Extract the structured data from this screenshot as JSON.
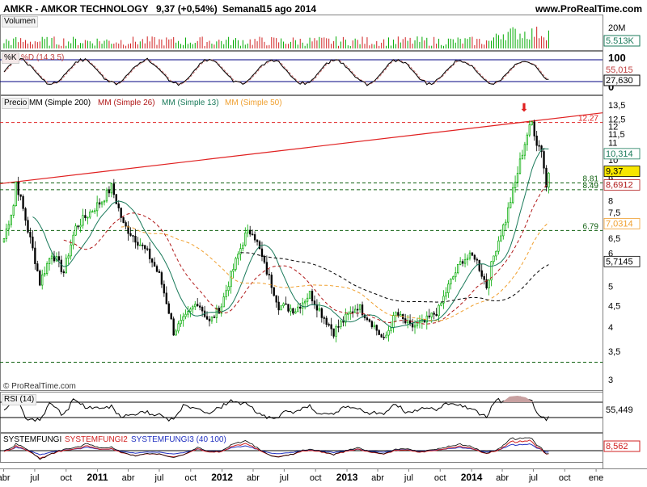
{
  "header": {
    "ticker": "AMKR - AMKOR TECHNOLOGY",
    "quote": "9,37 (+0,54%)",
    "period": "Semanal",
    "date": "15 ago 2014",
    "site": "www.ProRealTime.com"
  },
  "copyright": "© ProRealTime.com",
  "colors": {
    "up": "#00aa00",
    "down": "#000000",
    "sma200": "#000000",
    "sma26": "#b01818",
    "sma13": "#1a7a5a",
    "sma50": "#f0a030",
    "trend": "#e02020",
    "level": "#106010",
    "level_top": "#e02020"
  },
  "panels": {
    "volume": {
      "label": "Volumen",
      "scale_labels": [
        "20M"
      ],
      "last_value": "5.513K"
    },
    "stoch": {
      "label_k": "%K",
      "label_d": "%D (14 3 5)",
      "scale_labels": [
        "100",
        "0"
      ],
      "value_d": "55,015",
      "value_k": "27,630"
    },
    "price": {
      "label_precio": "Precio",
      "legend": [
        "MM (Simple 200)",
        "MM (Simple 26)",
        "MM (Simple 13)",
        "MM (Simple 50)"
      ],
      "axis_labels": [
        "13,5",
        "12,5",
        "12",
        "11,5",
        "11",
        "10,5",
        "10",
        "9",
        "8",
        "7,5",
        "7",
        "6,5",
        "6",
        "5",
        "4,5",
        "4",
        "3,5",
        "3"
      ],
      "value_labels": [
        {
          "text": "10,314",
          "color": "#1a7a5a"
        },
        {
          "text": "9,37",
          "color": "#000000"
        },
        {
          "text": "8,6912",
          "color": "#b01818"
        },
        {
          "text": "7,0314",
          "color": "#f0a030"
        },
        {
          "text": "5,7145",
          "color": "#000000"
        }
      ],
      "levels": [
        {
          "value": 12.27,
          "label": "12.27"
        },
        {
          "value": 8.81,
          "label": "8.81"
        },
        {
          "value": 8.49,
          "label": "8.49"
        },
        {
          "value": 6.79,
          "label": "6.79"
        },
        {
          "value": 3.3,
          "label": ""
        }
      ]
    },
    "rsi": {
      "label": "RSI (14)",
      "last_value": "55,449"
    },
    "fungi": {
      "label1": "SYSTEMFUNGI",
      "label2": "SYSTEMFUNGI2",
      "label3": "SYSTEMFUNGI3 (40 100)",
      "last_value": "8,562"
    }
  },
  "x_axis": [
    "abr",
    "jul",
    "oct",
    "2011",
    "abr",
    "jul",
    "oct",
    "2012",
    "abr",
    "jul",
    "oct",
    "2013",
    "abr",
    "jul",
    "oct",
    "2014",
    "abr",
    "jul",
    "oct",
    "ene"
  ],
  "chart_data": {
    "type": "candlestick",
    "interval": "weekly",
    "x_start": "2010-04",
    "x_end": "2014-08-15",
    "anchors": [
      [
        "2010-04-02",
        6.5
      ],
      [
        "2010-04-30",
        7.8
      ],
      [
        "2010-05-07",
        8.85
      ],
      [
        "2010-06-11",
        6.8
      ],
      [
        "2010-07-16",
        5.1
      ],
      [
        "2010-08-20",
        6.0
      ],
      [
        "2010-09-24",
        5.4
      ],
      [
        "2010-10-29",
        6.9
      ],
      [
        "2010-12-03",
        7.4
      ],
      [
        "2011-01-14",
        8.0
      ],
      [
        "2011-02-11",
        8.6
      ],
      [
        "2011-03-18",
        7.0
      ],
      [
        "2011-04-22",
        6.5
      ],
      [
        "2011-05-27",
        6.0
      ],
      [
        "2011-07-01",
        5.3
      ],
      [
        "2011-08-12",
        3.9
      ],
      [
        "2011-09-16",
        4.2
      ],
      [
        "2011-10-21",
        4.6
      ],
      [
        "2011-11-25",
        4.1
      ],
      [
        "2011-12-30",
        4.5
      ],
      [
        "2012-02-03",
        5.5
      ],
      [
        "2012-03-09",
        6.6
      ],
      [
        "2012-03-30",
        6.8
      ],
      [
        "2012-05-04",
        5.6
      ],
      [
        "2012-06-15",
        4.5
      ],
      [
        "2012-08-03",
        4.4
      ],
      [
        "2012-09-14",
        4.8
      ],
      [
        "2012-10-19",
        4.3
      ],
      [
        "2012-11-23",
        3.9
      ],
      [
        "2012-12-28",
        4.2
      ],
      [
        "2013-02-01",
        4.5
      ],
      [
        "2013-03-15",
        4.1
      ],
      [
        "2013-04-19",
        3.7
      ],
      [
        "2013-05-24",
        4.3
      ],
      [
        "2013-07-05",
        4.0
      ],
      [
        "2013-08-16",
        4.1
      ],
      [
        "2013-09-27",
        4.4
      ],
      [
        "2013-10-25",
        5.0
      ],
      [
        "2013-12-06",
        5.8
      ],
      [
        "2014-01-10",
        5.9
      ],
      [
        "2014-02-14",
        5.0
      ],
      [
        "2014-03-14",
        6.2
      ],
      [
        "2014-04-11",
        7.2
      ],
      [
        "2014-05-09",
        8.8
      ],
      [
        "2014-06-13",
        11.5
      ],
      [
        "2014-06-27",
        12.27
      ],
      [
        "2014-07-11",
        11.0
      ],
      [
        "2014-07-25",
        10.6
      ],
      [
        "2014-08-08",
        8.6
      ],
      [
        "2014-08-15",
        9.37
      ]
    ],
    "trendline": [
      [
        "2010-05-07",
        8.85
      ],
      [
        "2014-08-15",
        12.65
      ]
    ],
    "ylim": [
      3.0,
      13.5
    ],
    "y_scale": "log"
  }
}
